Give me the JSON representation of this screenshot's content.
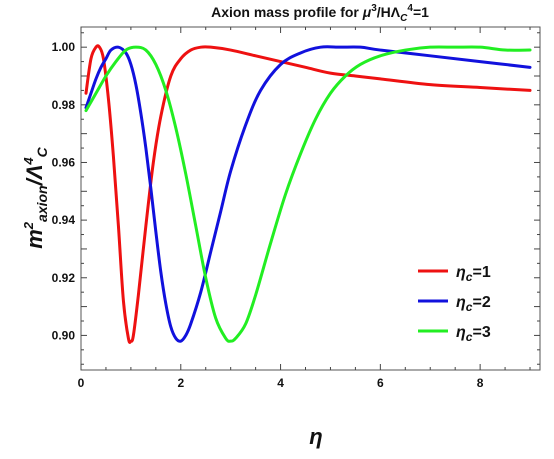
{
  "chart_data": {
    "type": "line",
    "title": {
      "prefix": "Axion mass profile for ",
      "mu": "μ",
      "mu_exp": "3",
      "mid": "/HΛ",
      "lam_sub": "C",
      "lam_exp": "4",
      "suffix": "=1"
    },
    "xlabel": "η",
    "ylabel": {
      "m": "m",
      "m_exp": "2",
      "sub": "axion",
      "lam": "/Λ",
      "lam_exp": "4",
      "lam_sub": "C"
    },
    "xlim": [
      0,
      9.2
    ],
    "ylim": [
      0.888,
      1.007
    ],
    "xticks": [
      0,
      2,
      4,
      6,
      8
    ],
    "yticks": [
      0.9,
      0.92,
      0.94,
      0.96,
      0.98,
      1.0
    ],
    "ytick_labels": [
      "0.90",
      "0.92",
      "0.94",
      "0.96",
      "0.98",
      "1.00"
    ],
    "grid": false,
    "legend": {
      "placement": "lower-right"
    },
    "series": [
      {
        "name": "1",
        "color": "#ee1111",
        "x": [
          0.1,
          0.2,
          0.3,
          0.37,
          0.45,
          0.55,
          0.65,
          0.75,
          0.85,
          0.95,
          1.0,
          1.05,
          1.15,
          1.3,
          1.45,
          1.6,
          1.8,
          2.0,
          2.2,
          2.4,
          2.6,
          3.0,
          3.5,
          4.0,
          4.5,
          5.0,
          5.5,
          6.0,
          7.0,
          8.0,
          9.0
        ],
        "y": [
          0.984,
          0.996,
          1.0,
          1.0,
          0.996,
          0.982,
          0.962,
          0.938,
          0.912,
          0.899,
          0.898,
          0.9,
          0.914,
          0.938,
          0.96,
          0.976,
          0.99,
          0.996,
          0.999,
          1.0,
          1.0,
          0.999,
          0.997,
          0.995,
          0.993,
          0.991,
          0.99,
          0.989,
          0.987,
          0.986,
          0.985
        ]
      },
      {
        "name": "2",
        "color": "#1111dd",
        "x": [
          0.1,
          0.2,
          0.3,
          0.4,
          0.5,
          0.6,
          0.75,
          0.9,
          1.0,
          1.1,
          1.2,
          1.3,
          1.4,
          1.5,
          1.6,
          1.7,
          1.8,
          1.9,
          2.0,
          2.1,
          2.2,
          2.4,
          2.6,
          2.8,
          3.0,
          3.3,
          3.6,
          4.0,
          4.4,
          4.8,
          5.2,
          5.6,
          6.0,
          7.0,
          8.0,
          9.0
        ],
        "y": [
          0.979,
          0.984,
          0.989,
          0.993,
          0.996,
          0.999,
          1.0,
          0.998,
          0.994,
          0.987,
          0.977,
          0.965,
          0.951,
          0.936,
          0.922,
          0.911,
          0.903,
          0.899,
          0.898,
          0.9,
          0.904,
          0.915,
          0.929,
          0.943,
          0.957,
          0.973,
          0.985,
          0.994,
          0.998,
          1.0,
          1.0,
          1.0,
          0.999,
          0.997,
          0.995,
          0.993
        ]
      },
      {
        "name": "3",
        "color": "#22ee22",
        "x": [
          0.1,
          0.3,
          0.5,
          0.7,
          0.9,
          1.1,
          1.3,
          1.5,
          1.7,
          1.9,
          2.1,
          2.3,
          2.5,
          2.7,
          2.9,
          3.0,
          3.1,
          3.3,
          3.5,
          3.8,
          4.1,
          4.4,
          4.7,
          5.0,
          5.3,
          5.6,
          6.0,
          6.5,
          7.0,
          7.5,
          8.0,
          8.5,
          9.0
        ],
        "y": [
          0.978,
          0.984,
          0.99,
          0.995,
          0.999,
          1.0,
          0.999,
          0.994,
          0.985,
          0.972,
          0.956,
          0.938,
          0.92,
          0.906,
          0.899,
          0.898,
          0.899,
          0.904,
          0.914,
          0.932,
          0.949,
          0.963,
          0.975,
          0.984,
          0.99,
          0.994,
          0.997,
          0.999,
          1.0,
          1.0,
          1.0,
          0.999,
          0.999
        ]
      }
    ],
    "legend_prefix": "η",
    "legend_sub": "c",
    "legend_eq": "="
  }
}
